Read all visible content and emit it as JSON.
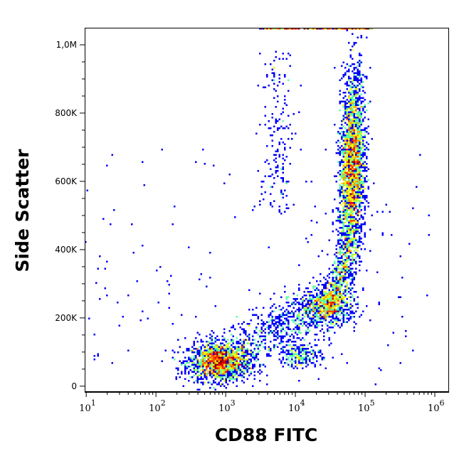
{
  "chart_data": {
    "type": "heatmap",
    "subtype": "flow-cytometry-density-scatter",
    "title": "",
    "xlabel": "CD88 FITC",
    "ylabel": "Side Scatter",
    "x_scale": "log",
    "xlim": [
      9.5,
      1600000
    ],
    "ylim": [
      -17000,
      1050000
    ],
    "x_ticks": [
      {
        "value": 10,
        "base": "10",
        "exp": "1"
      },
      {
        "value": 100,
        "base": "10",
        "exp": "2"
      },
      {
        "value": 1000,
        "base": "10",
        "exp": "3"
      },
      {
        "value": 10000,
        "base": "10",
        "exp": "4"
      },
      {
        "value": 100000,
        "base": "10",
        "exp": "5"
      },
      {
        "value": 1000000,
        "base": "10",
        "exp": "6"
      }
    ],
    "y_ticks": [
      {
        "value": 0,
        "label": "0"
      },
      {
        "value": 200000,
        "label": "200K"
      },
      {
        "value": 400000,
        "label": "400K"
      },
      {
        "value": 600000,
        "label": "600K"
      },
      {
        "value": 800000,
        "label": "800K"
      },
      {
        "value": 1000000,
        "label": "1,0M"
      }
    ],
    "grid": false,
    "colormap": "jet (blue low density → red high density)",
    "populations": [
      {
        "x_center": 800,
        "y_center": 70000,
        "x_spread_decades": 0.22,
        "y_spread": 28000,
        "events": 1600
      },
      {
        "x_center": 65000,
        "y_center": 640000,
        "x_spread_decades": 0.09,
        "y_spread": 140000,
        "events": 2600
      },
      {
        "x_center": 30000,
        "y_center": 235000,
        "x_spread_decades": 0.2,
        "y_spread": 30000,
        "events": 700
      },
      {
        "x_center": 12000,
        "y_center": 90000,
        "x_spread_decades": 0.15,
        "y_spread": 18000,
        "events": 220
      },
      {
        "x_center": 20000,
        "y_center": 1050000,
        "x_spread_decades": 0.5,
        "y_spread": 0,
        "events": 300
      }
    ]
  }
}
